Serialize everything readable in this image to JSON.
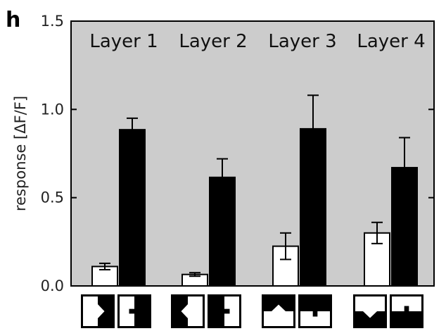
{
  "panel_label": "h",
  "colors": {
    "plot_background": "#cccccc",
    "bar_light": "#ffffff",
    "bar_dark": "#000000",
    "axis": "#000000"
  },
  "chart_data": {
    "type": "bar",
    "title": "",
    "xlabel": "",
    "ylabel": "response [ΔF/F]",
    "ylim": [
      0,
      1.5
    ],
    "yticks": [
      0.0,
      0.5,
      1.0,
      1.5
    ],
    "ytick_labels": [
      "0.0",
      "0.5",
      "1.0",
      "1.5"
    ],
    "grid": false,
    "legend": "none",
    "categories": [
      "Layer 1",
      "Layer 2",
      "Layer 3",
      "Layer 4"
    ],
    "series": [
      {
        "fill": "white",
        "values": [
          0.11,
          0.065,
          0.225,
          0.3
        ],
        "errors": [
          0.018,
          0.01,
          0.075,
          0.06
        ],
        "stimulus_icons": [
          "arrow-right-icon",
          "arrow-left-icon",
          "arrow-up-icon",
          "arrow-down-icon"
        ]
      },
      {
        "fill": "black",
        "values": [
          0.885,
          0.615,
          0.89,
          0.67
        ],
        "errors": [
          0.065,
          0.105,
          0.19,
          0.17
        ],
        "stimulus_icons": [
          "arrow-right-icon",
          "arrow-left-icon",
          "arrow-up-icon",
          "arrow-down-icon"
        ]
      }
    ]
  }
}
